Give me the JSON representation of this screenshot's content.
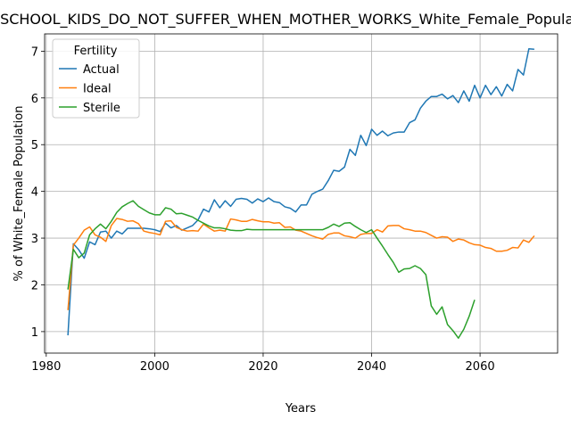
{
  "chart_data": {
    "type": "line",
    "title": "SCHOOL_KIDS_DO_NOT_SUFFER_WHEN_MOTHER_WORKS_White_Female_Population",
    "xlabel": "Years",
    "ylabel": "% of White_Female Population",
    "xlim": [
      1979.7,
      2074.3
    ],
    "ylim": [
      0.54,
      7.37
    ],
    "xticks": [
      1980,
      2000,
      2020,
      2040,
      2060
    ],
    "yticks": [
      1,
      2,
      3,
      4,
      5,
      6,
      7
    ],
    "grid": true,
    "legend": {
      "title": "Fertility",
      "position": "top-left"
    },
    "series": [
      {
        "name": "Actual",
        "color": "#1f77b4",
        "x": [
          1984,
          1985,
          1986,
          1987,
          1988,
          1989,
          1990,
          1991,
          1992,
          1993,
          1994,
          1995,
          1996,
          1997,
          1998,
          1999,
          2000,
          2001,
          2002,
          2003,
          2004,
          2005,
          2006,
          2007,
          2008,
          2009,
          2010,
          2011,
          2012,
          2013,
          2014,
          2015,
          2016,
          2017,
          2018,
          2019,
          2020,
          2021,
          2022,
          2023,
          2024,
          2025,
          2026,
          2027,
          2028,
          2029,
          2030,
          2031,
          2032,
          2033,
          2034,
          2035,
          2036,
          2037,
          2038,
          2039,
          2040,
          2041,
          2042,
          2043,
          2044,
          2045,
          2046,
          2047,
          2048,
          2049,
          2050,
          2051,
          2052,
          2053,
          2054,
          2055,
          2056,
          2057,
          2058,
          2059,
          2060,
          2061,
          2062,
          2063,
          2064,
          2065,
          2066,
          2067,
          2068,
          2069,
          2070
        ],
        "values": [
          0.92,
          2.88,
          2.75,
          2.57,
          2.92,
          2.86,
          3.13,
          3.15,
          3.0,
          3.15,
          3.09,
          3.21,
          3.21,
          3.21,
          3.21,
          3.2,
          3.18,
          3.14,
          3.32,
          3.22,
          3.27,
          3.17,
          3.22,
          3.27,
          3.39,
          3.62,
          3.56,
          3.82,
          3.65,
          3.8,
          3.68,
          3.83,
          3.85,
          3.83,
          3.75,
          3.84,
          3.78,
          3.86,
          3.78,
          3.76,
          3.67,
          3.64,
          3.56,
          3.71,
          3.71,
          3.94,
          4.0,
          4.05,
          4.23,
          4.45,
          4.43,
          4.52,
          4.9,
          4.77,
          5.2,
          4.98,
          5.33,
          5.2,
          5.29,
          5.19,
          5.25,
          5.27,
          5.27,
          5.47,
          5.53,
          5.78,
          5.93,
          6.03,
          6.03,
          6.08,
          5.98,
          6.05,
          5.9,
          6.15,
          5.93,
          6.27,
          6.0,
          6.27,
          6.07,
          6.24,
          6.04,
          6.29,
          6.15,
          6.61,
          6.49,
          7.05,
          7.04
        ]
      },
      {
        "name": "Ideal",
        "color": "#ff7f0e",
        "x": [
          1984,
          1985,
          1986,
          1987,
          1988,
          1989,
          1990,
          1991,
          1992,
          1993,
          1994,
          1995,
          1996,
          1997,
          1998,
          1999,
          2000,
          2001,
          2002,
          2003,
          2004,
          2005,
          2006,
          2007,
          2008,
          2009,
          2010,
          2011,
          2012,
          2013,
          2014,
          2015,
          2016,
          2017,
          2018,
          2019,
          2020,
          2021,
          2022,
          2023,
          2024,
          2025,
          2026,
          2027,
          2028,
          2029,
          2030,
          2031,
          2032,
          2033,
          2034,
          2035,
          2036,
          2037,
          2038,
          2039,
          2040,
          2041,
          2042,
          2043,
          2044,
          2045,
          2046,
          2047,
          2048,
          2049,
          2050,
          2051,
          2052,
          2053,
          2054,
          2055,
          2056,
          2057,
          2058,
          2059,
          2060,
          2061,
          2062,
          2063,
          2064,
          2065,
          2066,
          2067,
          2068,
          2069,
          2070
        ],
        "values": [
          1.46,
          2.85,
          3.0,
          3.17,
          3.24,
          3.07,
          3.02,
          2.93,
          3.27,
          3.42,
          3.4,
          3.36,
          3.37,
          3.31,
          3.15,
          3.12,
          3.1,
          3.07,
          3.36,
          3.37,
          3.23,
          3.18,
          3.15,
          3.16,
          3.15,
          3.3,
          3.22,
          3.15,
          3.17,
          3.15,
          3.41,
          3.39,
          3.36,
          3.36,
          3.4,
          3.37,
          3.35,
          3.35,
          3.32,
          3.33,
          3.23,
          3.24,
          3.17,
          3.15,
          3.1,
          3.05,
          3.01,
          2.98,
          3.08,
          3.11,
          3.11,
          3.05,
          3.03,
          3.0,
          3.08,
          3.1,
          3.1,
          3.18,
          3.13,
          3.26,
          3.27,
          3.27,
          3.2,
          3.18,
          3.15,
          3.15,
          3.12,
          3.06,
          3.0,
          3.03,
          3.02,
          2.93,
          2.98,
          2.96,
          2.9,
          2.86,
          2.85,
          2.8,
          2.78,
          2.72,
          2.72,
          2.74,
          2.8,
          2.79,
          2.96,
          2.91,
          3.05
        ]
      },
      {
        "name": "Sterile",
        "color": "#2ca02c",
        "x": [
          1984,
          1985,
          1986,
          1987,
          1988,
          1989,
          1990,
          1991,
          1992,
          1993,
          1994,
          1995,
          1996,
          1997,
          1998,
          1999,
          2000,
          2001,
          2002,
          2003,
          2004,
          2005,
          2006,
          2007,
          2008,
          2009,
          2010,
          2011,
          2012,
          2013,
          2014,
          2015,
          2016,
          2017,
          2018,
          2019,
          2020,
          2021,
          2022,
          2023,
          2024,
          2025,
          2026,
          2027,
          2028,
          2029,
          2030,
          2031,
          2032,
          2033,
          2034,
          2035,
          2036,
          2037,
          2038,
          2039,
          2040,
          2041,
          2042,
          2043,
          2044,
          2045,
          2046,
          2047,
          2048,
          2049,
          2050,
          2051,
          2052,
          2053,
          2054,
          2055,
          2056,
          2057,
          2058,
          2059
        ],
        "values": [
          1.9,
          2.76,
          2.58,
          2.68,
          3.07,
          3.2,
          3.3,
          3.2,
          3.36,
          3.55,
          3.67,
          3.74,
          3.8,
          3.68,
          3.61,
          3.54,
          3.5,
          3.5,
          3.65,
          3.62,
          3.52,
          3.53,
          3.49,
          3.45,
          3.38,
          3.32,
          3.26,
          3.22,
          3.22,
          3.2,
          3.17,
          3.16,
          3.16,
          3.19,
          3.18,
          3.18,
          3.18,
          3.18,
          3.18,
          3.18,
          3.18,
          3.18,
          3.18,
          3.18,
          3.18,
          3.18,
          3.18,
          3.18,
          3.23,
          3.3,
          3.25,
          3.32,
          3.33,
          3.25,
          3.18,
          3.12,
          3.18,
          3.0,
          2.83,
          2.65,
          2.48,
          2.27,
          2.34,
          2.35,
          2.41,
          2.35,
          2.22,
          1.55,
          1.37,
          1.53,
          1.15,
          1.02,
          0.86,
          1.05,
          1.33,
          1.68
        ]
      }
    ]
  }
}
